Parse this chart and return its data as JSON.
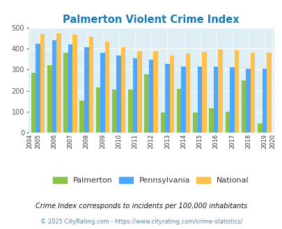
{
  "title": "Palmerton Violent Crime Index",
  "years": [
    2004,
    2005,
    2006,
    2007,
    2008,
    2009,
    2010,
    2011,
    2012,
    2013,
    2014,
    2015,
    2016,
    2017,
    2018,
    2019,
    2020
  ],
  "palmerton": [
    null,
    285,
    320,
    380,
    152,
    215,
    205,
    205,
    278,
    97,
    210,
    97,
    117,
    101,
    247,
    43,
    null
  ],
  "pennsylvania": [
    null,
    423,
    440,
    418,
    408,
    380,
    367,
    353,
    348,
    329,
    313,
    314,
    314,
    311,
    305,
    305,
    null
  ],
  "national": [
    null,
    469,
    473,
    467,
    455,
    432,
    405,
    388,
    388,
    368,
    377,
    384,
    397,
    394,
    380,
    379,
    null
  ],
  "bar_color_palmerton": "#8bc34a",
  "bar_color_pennsylvania": "#4da6ff",
  "bar_color_national": "#ffc04c",
  "plot_bg_color": "#ddeef5",
  "ylim": [
    0,
    500
  ],
  "yticks": [
    0,
    100,
    200,
    300,
    400,
    500
  ],
  "legend_labels": [
    "Palmerton",
    "Pennsylvania",
    "National"
  ],
  "footnote1": "Crime Index corresponds to incidents per 100,000 inhabitants",
  "footnote2": "© 2025 CityRating.com - https://www.cityrating.com/crime-statistics/",
  "title_color": "#1a7ab5",
  "footnote1_color": "#111111",
  "footnote2_color": "#4488aa"
}
